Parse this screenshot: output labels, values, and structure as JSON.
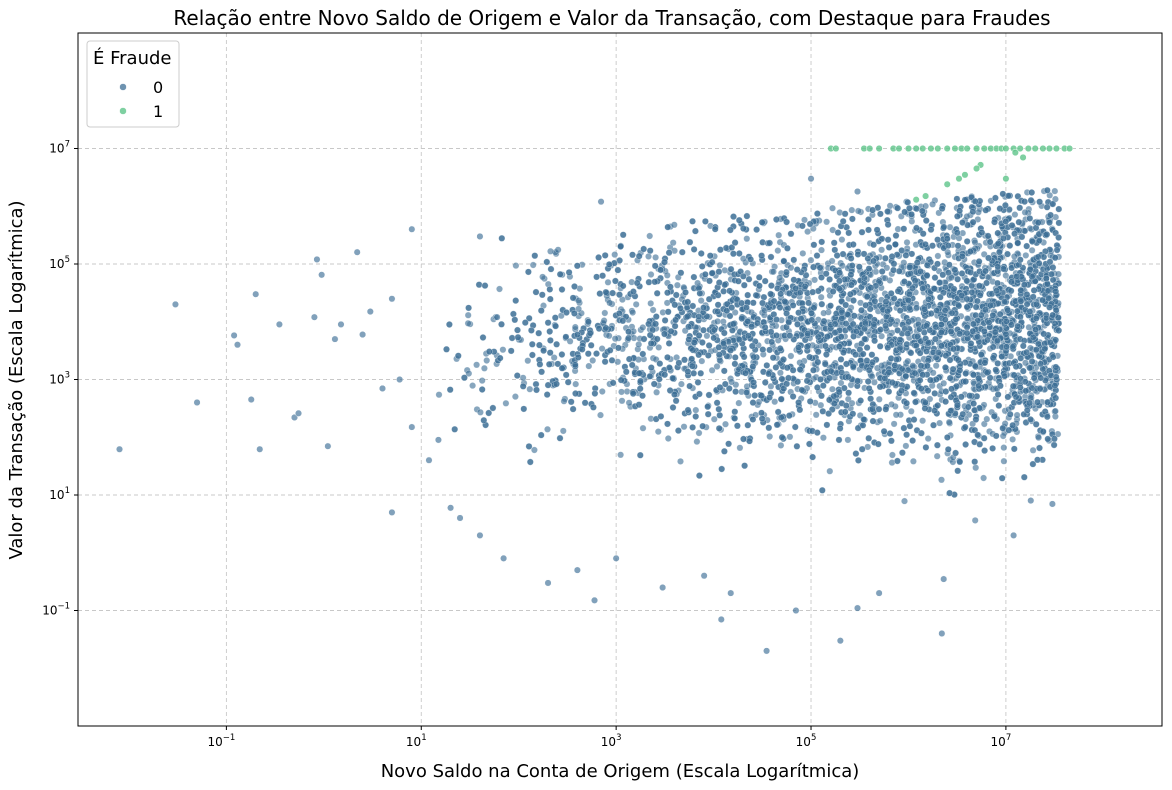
{
  "chart_data": {
    "type": "scatter",
    "title": "Relação entre Novo Saldo de Origem e Valor da Transação, com Destaque para Fraudes",
    "xlabel": "Novo Saldo na Conta de Origem (Escala Logarítmica)",
    "ylabel": "Valor da Transação (Escala Logarítmica)",
    "x_scale": "log",
    "y_scale": "log",
    "xlim": [
      0.003,
      400000000
    ],
    "ylim": [
      0.001,
      1000000000
    ],
    "x_ticks": [
      {
        "value": 0.1,
        "base": "10",
        "exp": "−1"
      },
      {
        "value": 10,
        "base": "10",
        "exp": "1"
      },
      {
        "value": 1000,
        "base": "10",
        "exp": "3"
      },
      {
        "value": 100000,
        "base": "10",
        "exp": "5"
      },
      {
        "value": 10000000,
        "base": "10",
        "exp": "7"
      }
    ],
    "y_ticks": [
      {
        "value": 0.1,
        "base": "10",
        "exp": "−1"
      },
      {
        "value": 10,
        "base": "10",
        "exp": "1"
      },
      {
        "value": 1000,
        "base": "10",
        "exp": "3"
      },
      {
        "value": 100000,
        "base": "10",
        "exp": "5"
      },
      {
        "value": 10000000,
        "base": "10",
        "exp": "7"
      }
    ],
    "grid": true,
    "legend": {
      "title": "É Fraude",
      "placement": "top-left",
      "entries": [
        {
          "label": "0",
          "color": "#3e6f96"
        },
        {
          "label": "1",
          "color": "#5ec48a"
        }
      ]
    },
    "series": [
      {
        "name": "0",
        "color": "#3e6f96",
        "main_cloud": {
          "x_min": 10,
          "x_max": 35000000,
          "y_min": 1,
          "y_max": 2000000,
          "density": "very high"
        },
        "points": [
          [
            0.008,
            62
          ],
          [
            0.03,
            20000
          ],
          [
            0.05,
            400
          ],
          [
            0.12,
            5800
          ],
          [
            0.13,
            4000
          ],
          [
            0.18,
            450
          ],
          [
            0.2,
            30000
          ],
          [
            0.22,
            62
          ],
          [
            0.35,
            9000
          ],
          [
            0.5,
            220
          ],
          [
            0.55,
            260
          ],
          [
            0.8,
            12000
          ],
          [
            0.85,
            120000
          ],
          [
            0.95,
            65000
          ],
          [
            1.1,
            70
          ],
          [
            1.3,
            5000
          ],
          [
            1.5,
            9000
          ],
          [
            2.2,
            160000
          ],
          [
            2.5,
            6000
          ],
          [
            3,
            15000
          ],
          [
            4,
            700
          ],
          [
            5,
            5
          ],
          [
            6,
            1000
          ],
          [
            8,
            150
          ],
          [
            12,
            40
          ],
          [
            15,
            90
          ],
          [
            20,
            6
          ],
          [
            25,
            4
          ],
          [
            40,
            2
          ],
          [
            70,
            0.8
          ],
          [
            200,
            0.3
          ],
          [
            400,
            0.5
          ],
          [
            600,
            0.15
          ],
          [
            1000,
            0.8
          ],
          [
            3000,
            0.25
          ],
          [
            8000,
            0.4
          ],
          [
            12000,
            0.07
          ],
          [
            15000,
            0.2
          ],
          [
            35000,
            0.02
          ],
          [
            70000,
            0.1
          ],
          [
            200000,
            0.03
          ],
          [
            300000,
            0.11
          ],
          [
            500000,
            0.2
          ],
          [
            2200000,
            0.04
          ],
          [
            2300000,
            0.35
          ],
          [
            12000000,
            2
          ],
          [
            18000000,
            8
          ],
          [
            30000000,
            7
          ],
          [
            700,
            1200000
          ],
          [
            100000,
            3000000
          ],
          [
            300000,
            1800000
          ],
          [
            5,
            25000
          ],
          [
            8,
            400000
          ],
          [
            40,
            300000
          ],
          [
            60,
            12000
          ]
        ]
      },
      {
        "name": "1",
        "color": "#5ec48a",
        "points": [
          [
            160000,
            10000000
          ],
          [
            180000,
            10000000
          ],
          [
            350000,
            10000000
          ],
          [
            400000,
            10000000
          ],
          [
            500000,
            10000000
          ],
          [
            700000,
            10000000
          ],
          [
            800000,
            10000000
          ],
          [
            1000000,
            10000000
          ],
          [
            1200000,
            10000000
          ],
          [
            1400000,
            10000000
          ],
          [
            1700000,
            10000000
          ],
          [
            2000000,
            10000000
          ],
          [
            2500000,
            10000000
          ],
          [
            3000000,
            10000000
          ],
          [
            3500000,
            10000000
          ],
          [
            4000000,
            10000000
          ],
          [
            5000000,
            10000000
          ],
          [
            6000000,
            10000000
          ],
          [
            7000000,
            10000000
          ],
          [
            8000000,
            10000000
          ],
          [
            9000000,
            10000000
          ],
          [
            10000000,
            10000000
          ],
          [
            12000000,
            10000000
          ],
          [
            14000000,
            10000000
          ],
          [
            17000000,
            10000000
          ],
          [
            20000000,
            10000000
          ],
          [
            24000000,
            10000000
          ],
          [
            28000000,
            10000000
          ],
          [
            33000000,
            10000000
          ],
          [
            40000000,
            10000000
          ],
          [
            45000000,
            10000000
          ],
          [
            15000000,
            7000000
          ],
          [
            12500000,
            8500000
          ],
          [
            5500000,
            5200000
          ],
          [
            5000000,
            4500000
          ],
          [
            3800000,
            3500000
          ],
          [
            3300000,
            3000000
          ],
          [
            2500000,
            2400000
          ],
          [
            1500000,
            1500000
          ],
          [
            1200000,
            1300000
          ],
          [
            10000000,
            3000000
          ]
        ]
      }
    ]
  }
}
